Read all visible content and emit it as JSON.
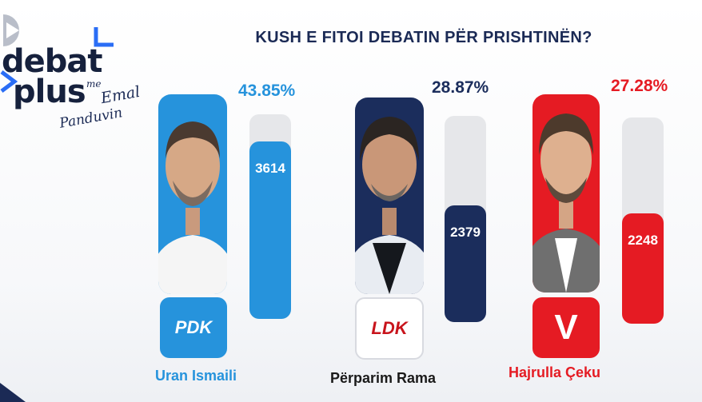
{
  "logo": {
    "line1": "debat",
    "line2": "plus",
    "me": "me",
    "sig1": "Emal",
    "sig2": "Panduvin"
  },
  "title": "KUSH E FITOI DEBATIN PËR PRISHTINËN?",
  "chart_data": {
    "type": "bar",
    "title": "KUSH E FITOI DEBATIN PËR PRISHTINËN?",
    "categories": [
      "Uran Ismaili",
      "Përparim Rama",
      "Hajrulla Çeku"
    ],
    "values": [
      3614,
      2379,
      2248
    ],
    "percent_labels": [
      "43.85%",
      "28.87%",
      "27.28%"
    ],
    "value_labels": [
      "3614",
      "2379",
      "2248"
    ],
    "parties": [
      "PDK",
      "LDK",
      "V"
    ],
    "colors": [
      "#2693dc",
      "#1b2d5c",
      "#e51b23"
    ],
    "ylim": [
      0,
      5400
    ]
  }
}
